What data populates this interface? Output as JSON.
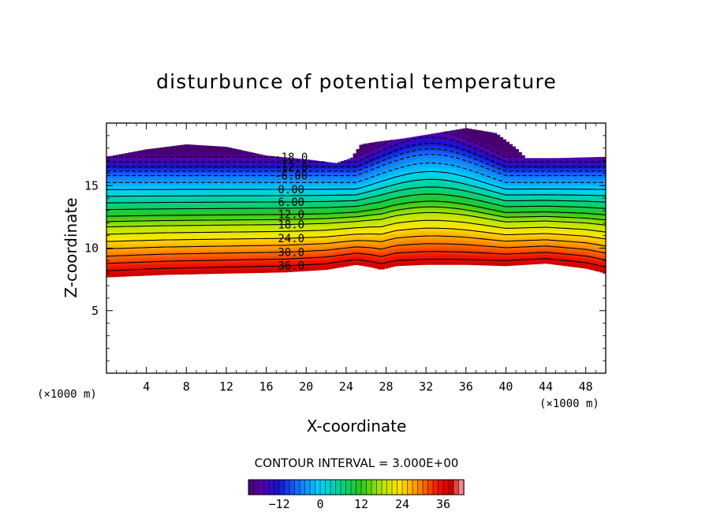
{
  "chart_data": {
    "type": "heatmap",
    "title": "disturbunce of potential temperature",
    "xlabel": "X-coordinate",
    "ylabel": "Z-coordinate",
    "x_unit_left": "(×1000 m)",
    "x_unit_right": "(×1000 m)",
    "xlim": [
      0,
      50
    ],
    "ylim": [
      0,
      20
    ],
    "x_ticks": [
      4,
      8,
      12,
      16,
      20,
      24,
      28,
      32,
      36,
      40,
      44,
      48
    ],
    "y_ticks": [
      5,
      10,
      15
    ],
    "x_tick_labels": [
      "4",
      "8",
      "12",
      "16",
      "20",
      "24",
      "28",
      "32",
      "36",
      "40",
      "44",
      "48"
    ],
    "y_tick_labels": [
      "5",
      "10",
      "15"
    ],
    "contour_interval_text": "CONTOUR INTERVAL = 3.000E+00",
    "contour_interval": 3.0,
    "contour_labels": [
      {
        "text": "-18.0",
        "value": -18
      },
      {
        "text": "-12.0",
        "value": -12
      },
      {
        "text": "-6.00",
        "value": -6
      },
      {
        "text": "0.00",
        "value": 0
      },
      {
        "text": "6.00",
        "value": 6
      },
      {
        "text": "12.0",
        "value": 12
      },
      {
        "text": "18.0",
        "value": 18
      },
      {
        "text": "24.0",
        "value": 24
      },
      {
        "text": "30.0",
        "value": 30
      },
      {
        "text": "36.0",
        "value": 36
      }
    ],
    "contour_label_x": 18.5,
    "contour_label_z": [
      17.3,
      16.5,
      15.8,
      14.7,
      13.7,
      12.7,
      11.9,
      10.8,
      9.7,
      8.6
    ],
    "field_range": [
      -21,
      42
    ],
    "lower_boundary_z": [
      [
        0,
        7.7
      ],
      [
        6,
        7.9
      ],
      [
        12,
        8.0
      ],
      [
        18,
        8.1
      ],
      [
        22,
        8.3
      ],
      [
        25,
        8.7
      ],
      [
        26.5,
        8.5
      ],
      [
        27.5,
        8.3
      ],
      [
        29,
        8.6
      ],
      [
        32,
        8.7
      ],
      [
        36,
        8.7
      ],
      [
        40,
        8.6
      ],
      [
        44,
        8.8
      ],
      [
        48,
        8.4
      ],
      [
        50,
        8.0
      ]
    ],
    "upper_boundary_z": [
      [
        0,
        17.3
      ],
      [
        4,
        17.9
      ],
      [
        8,
        18.3
      ],
      [
        12,
        18.1
      ],
      [
        16,
        17.4
      ],
      [
        20,
        17.1
      ],
      [
        23,
        16.8
      ],
      [
        24.5,
        17.2
      ],
      [
        25.5,
        18.3
      ],
      [
        27,
        18.5
      ],
      [
        30,
        18.8
      ],
      [
        33,
        19.2
      ],
      [
        36,
        19.6
      ],
      [
        39,
        19.2
      ],
      [
        41,
        18.0
      ],
      [
        42,
        17.2
      ],
      [
        45,
        17.2
      ],
      [
        50,
        17.3
      ]
    ],
    "anomaly_region": {
      "x_range": [
        25,
        40
      ],
      "z_range": [
        8.5,
        19.5
      ]
    },
    "colorbar": {
      "min": -21,
      "max": 42,
      "tick_values": [
        -12,
        0,
        12,
        24,
        36
      ],
      "tick_labels": [
        "−12",
        "0",
        "12",
        "24",
        "36"
      ]
    },
    "colors": {
      "cold": "#4a006e",
      "mid": "#00c8a0",
      "warm": "#e00000",
      "hot": "#ff9aa0"
    }
  }
}
